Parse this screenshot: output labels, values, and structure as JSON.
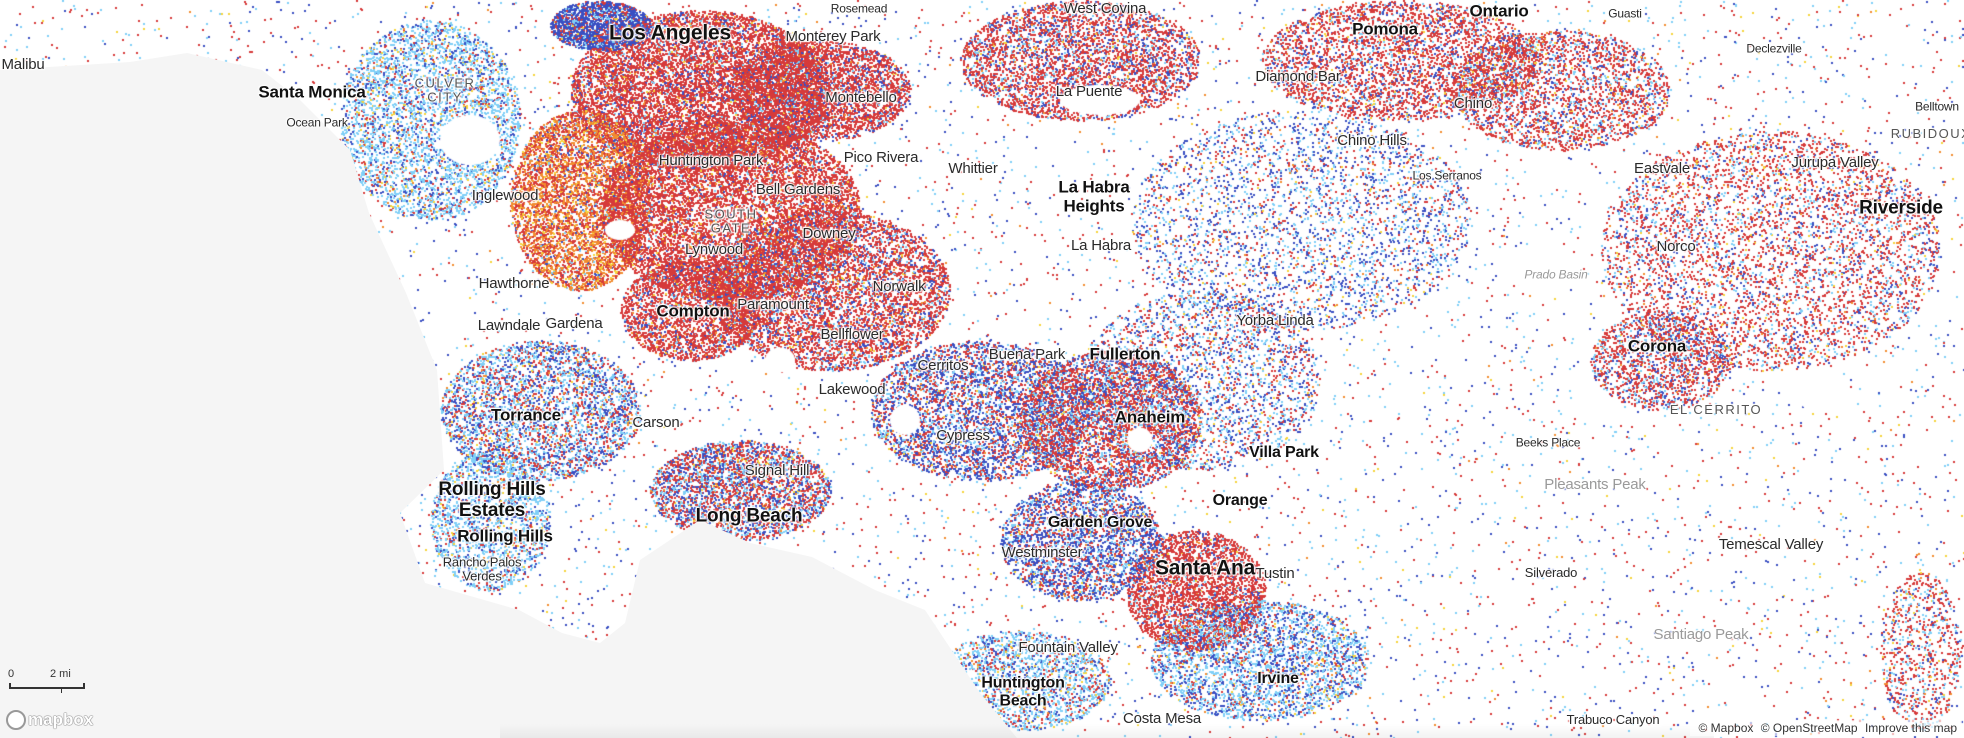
{
  "map": {
    "colors": {
      "land": "#ffffff",
      "water": "#f5f5f5",
      "dot_palette": [
        "#d63a3a",
        "#3a4fc2",
        "#7fcff7",
        "#f28c2f",
        "#f5d43a"
      ]
    },
    "places": {
      "rosemead": "Rosemead",
      "west_covina": "West Covina",
      "pomona": "Pomona",
      "ontario": "Ontario",
      "guasti": "Guasti",
      "los_angeles": "Los Angeles",
      "monterey_park": "Monterey Park",
      "malibu": "Malibu",
      "santa_monica": "Santa Monica",
      "culver_city": "CULVER\nCITY",
      "ocean_park": "Ocean Park",
      "montebello": "Montebello",
      "la_puente": "La Puente",
      "diamond_bar": "Diamond Bar",
      "declezville": "Declezville",
      "chino": "Chino",
      "belltown": "Belltown",
      "rubidoux": "RUBIDOUX",
      "chino_hills": "Chino Hills",
      "huntington_park": "Huntington Park",
      "pico_rivera": "Pico Rivera",
      "whittier": "Whittier",
      "jurupa_valley": "Jurupa Valley",
      "los_serranos": "Los Serranos",
      "eastvale": "Eastvale",
      "la_habra_heights": "La Habra\nHeights",
      "riverside": "Riverside",
      "inglewood": "Inglewood",
      "bell_gardens": "Bell Gardens",
      "south_gate": "SOUTH\nGATE",
      "downey": "Downey",
      "lynwood": "Lynwood",
      "la_habra": "La Habra",
      "norco": "Norco",
      "prado_basin": "Prado Basin",
      "hawthorne": "Hawthorne",
      "norwalk": "Norwalk",
      "compton": "Compton",
      "paramount": "Paramount",
      "yorba_linda": "Yorba Linda",
      "lawndale": "Lawndale",
      "gardena": "Gardena",
      "bellflower": "Bellflower",
      "buena_park": "Buena Park",
      "fullerton": "Fullerton",
      "corona": "Corona",
      "cerritos": "Cerritos",
      "lakewood": "Lakewood",
      "el_cerrito": "EL CERRITO",
      "torrance": "Torrance",
      "carson": "Carson",
      "anaheim": "Anaheim",
      "cypress": "Cypress",
      "beeks_place": "Beeks Place",
      "villa_park": "Villa Park",
      "signal_hill": "Signal Hill",
      "pleasants_peak": "Pleasants Peak",
      "rolling_hills_estates": "Rolling Hills\nEstates",
      "orange": "Orange",
      "long_beach": "Long Beach",
      "garden_grove": "Garden Grove",
      "rolling_hills": "Rolling Hills",
      "temescal_valley": "Temescal Valley",
      "westminster": "Westminster",
      "santa_ana": "Santa Ana",
      "tustin": "Tustin",
      "rancho_palos_verdes": "Rancho Palos\nVerdes",
      "silverado": "Silverado",
      "santiago_peak": "Santiago Peak",
      "fountain_valley": "Fountain Valley",
      "huntington_beach": "Huntington\nBeach",
      "irvine": "Irvine",
      "costa_mesa": "Costa Mesa",
      "trabuco_canyon": "Trabuco Canyon"
    }
  },
  "scale": {
    "zero": "0",
    "distance": "2 mi"
  },
  "logo": {
    "text": "mapbox"
  },
  "attribution": {
    "mapbox": "© Mapbox",
    "osm": "© OpenStreetMap",
    "improve": "Improve this map"
  }
}
